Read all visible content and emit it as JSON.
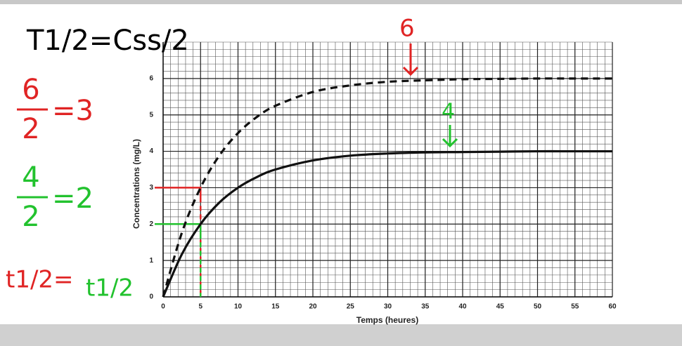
{
  "chart_data": {
    "type": "line",
    "x_label": "Temps (heures)",
    "y_label": "Concentrations (mg/L)",
    "xlim": [
      0,
      60
    ],
    "xticks": [
      0,
      5,
      10,
      15,
      20,
      25,
      30,
      35,
      40,
      45,
      50,
      55,
      60
    ],
    "ylim": [
      0,
      7
    ],
    "yticks": [
      0,
      1,
      2,
      3,
      4,
      5,
      6
    ],
    "grid": true,
    "x": [
      0,
      2.5,
      5,
      7.5,
      10,
      12.5,
      15,
      20,
      25,
      30,
      35,
      40,
      45,
      50,
      55,
      60
    ],
    "series": [
      {
        "color": "#111111",
        "dashed": true,
        "values": [
          0,
          1.76,
          3,
          3.88,
          4.5,
          4.94,
          5.25,
          5.63,
          5.81,
          5.91,
          5.95,
          5.98,
          5.99,
          6,
          6,
          6
        ]
      },
      {
        "color": "#111111",
        "dashed": false,
        "values": [
          0,
          1.17,
          2,
          2.59,
          3,
          3.29,
          3.5,
          3.75,
          3.88,
          3.94,
          3.97,
          3.98,
          3.99,
          4,
          4,
          4
        ]
      }
    ],
    "guides": [
      {
        "x": 5,
        "y": 3,
        "color": "#e02424"
      },
      {
        "x": 5,
        "y": 2,
        "color": "#22c22e"
      }
    ],
    "annotations": [
      {
        "text": "T1/2=Css/2",
        "color": "#000000"
      },
      {
        "text": "6",
        "color": "#e02424"
      },
      {
        "text": "4",
        "color": "#22c22e"
      },
      {
        "numerator": "6",
        "denominator": "2",
        "result": "=3",
        "color": "#e02424"
      },
      {
        "numerator": "4",
        "denominator": "2",
        "result": "=2",
        "color": "#22c22e"
      },
      {
        "text": "t1/2=",
        "color": "#e02424"
      },
      {
        "text": "t1/2",
        "color": "#22c22e"
      }
    ]
  }
}
